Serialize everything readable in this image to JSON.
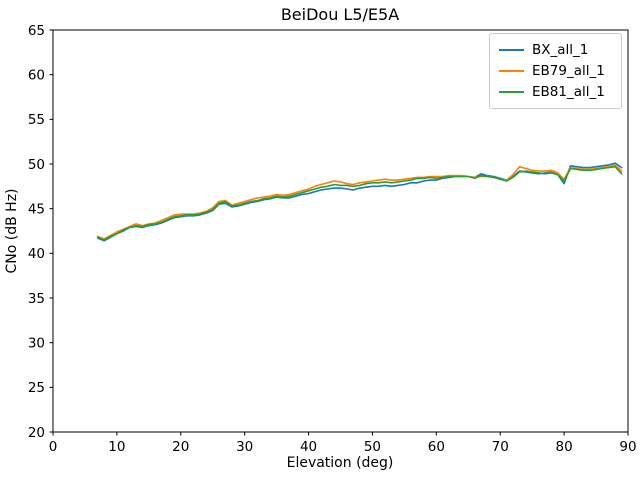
{
  "figure": {
    "title": "BeiDou L5/E5A",
    "xlabel": "Elevation (deg)",
    "ylabel": "CNo (dB Hz)"
  },
  "axes": {
    "xlim": [
      0,
      90
    ],
    "ylim": [
      20,
      65
    ],
    "x_ticks": [
      0,
      10,
      20,
      30,
      40,
      50,
      60,
      70,
      80,
      90
    ],
    "y_ticks": [
      20,
      25,
      30,
      35,
      40,
      45,
      50,
      55,
      60,
      65
    ],
    "spine_color": "#000000",
    "tick_color": "#000000"
  },
  "legend": {
    "border_color": "#cccccc",
    "items": [
      {
        "label": "BX_all_1",
        "color": "#1f77b4"
      },
      {
        "label": "EB79_all_1",
        "color": "#ff7f0e"
      },
      {
        "label": "EB81_all_1",
        "color": "#2ca02c"
      }
    ]
  },
  "chart_data": {
    "type": "line",
    "title": "BeiDou L5/E5A",
    "xlabel": "Elevation (deg)",
    "ylabel": "CNo (dB Hz)",
    "xlim": [
      0,
      90
    ],
    "ylim": [
      20,
      65
    ],
    "grid": false,
    "legend_position": "upper right",
    "line_width": 1.6,
    "x": [
      7,
      8,
      9,
      10,
      11,
      12,
      13,
      14,
      15,
      16,
      17,
      18,
      19,
      20,
      21,
      22,
      23,
      24,
      25,
      26,
      27,
      28,
      29,
      30,
      31,
      32,
      33,
      34,
      35,
      36,
      37,
      38,
      39,
      40,
      41,
      42,
      43,
      44,
      45,
      46,
      47,
      48,
      49,
      50,
      51,
      52,
      53,
      54,
      55,
      56,
      57,
      58,
      59,
      60,
      61,
      62,
      63,
      64,
      65,
      66,
      67,
      68,
      69,
      70,
      71,
      72,
      73,
      74,
      75,
      76,
      77,
      78,
      79,
      80,
      81,
      82,
      83,
      84,
      85,
      86,
      87,
      88,
      89
    ],
    "series": [
      {
        "name": "BX_all_1",
        "color": "#1f77b4",
        "values": [
          41.7,
          41.4,
          41.8,
          42.2,
          42.5,
          42.9,
          43.0,
          42.9,
          43.1,
          43.2,
          43.4,
          43.7,
          44.0,
          44.1,
          44.2,
          44.2,
          44.3,
          44.5,
          44.8,
          45.5,
          45.6,
          45.2,
          45.3,
          45.5,
          45.7,
          45.8,
          46.0,
          46.1,
          46.3,
          46.2,
          46.2,
          46.4,
          46.6,
          46.7,
          46.9,
          47.1,
          47.2,
          47.3,
          47.3,
          47.2,
          47.1,
          47.3,
          47.4,
          47.5,
          47.5,
          47.6,
          47.5,
          47.6,
          47.7,
          47.9,
          47.9,
          48.1,
          48.2,
          48.2,
          48.4,
          48.5,
          48.6,
          48.6,
          48.6,
          48.5,
          48.9,
          48.7,
          48.6,
          48.4,
          48.2,
          48.6,
          49.2,
          49.1,
          49.0,
          48.9,
          49.0,
          49.1,
          48.8,
          47.8,
          49.8,
          49.7,
          49.6,
          49.6,
          49.7,
          49.8,
          49.9,
          50.1,
          49.6
        ]
      },
      {
        "name": "EB79_all_1",
        "color": "#ff7f0e",
        "values": [
          41.9,
          41.6,
          42.0,
          42.4,
          42.7,
          43.0,
          43.3,
          43.1,
          43.3,
          43.4,
          43.7,
          44.0,
          44.3,
          44.4,
          44.4,
          44.4,
          44.5,
          44.7,
          45.1,
          45.8,
          45.9,
          45.4,
          45.6,
          45.8,
          46.0,
          46.2,
          46.3,
          46.4,
          46.6,
          46.5,
          46.6,
          46.8,
          47.0,
          47.2,
          47.5,
          47.7,
          47.9,
          48.1,
          48.0,
          47.8,
          47.7,
          47.9,
          48.0,
          48.1,
          48.2,
          48.3,
          48.2,
          48.2,
          48.3,
          48.4,
          48.5,
          48.5,
          48.6,
          48.6,
          48.6,
          48.7,
          48.7,
          48.7,
          48.6,
          48.5,
          48.6,
          48.6,
          48.5,
          48.3,
          48.2,
          48.8,
          49.7,
          49.5,
          49.3,
          49.2,
          49.2,
          49.3,
          49.0,
          48.3,
          49.6,
          49.5,
          49.4,
          49.4,
          49.5,
          49.6,
          49.7,
          49.9,
          49.2
        ]
      },
      {
        "name": "EB81_all_1",
        "color": "#2ca02c",
        "values": [
          41.8,
          41.5,
          41.9,
          42.2,
          42.6,
          42.9,
          43.1,
          43.0,
          43.2,
          43.3,
          43.5,
          43.8,
          44.1,
          44.2,
          44.3,
          44.3,
          44.4,
          44.6,
          44.9,
          45.6,
          45.8,
          45.3,
          45.4,
          45.6,
          45.8,
          45.9,
          46.1,
          46.2,
          46.4,
          46.3,
          46.4,
          46.6,
          46.8,
          47.0,
          47.2,
          47.4,
          47.5,
          47.7,
          47.6,
          47.6,
          47.5,
          47.6,
          47.8,
          47.9,
          47.9,
          48.0,
          47.9,
          48.0,
          48.1,
          48.2,
          48.4,
          48.4,
          48.5,
          48.4,
          48.5,
          48.6,
          48.6,
          48.6,
          48.6,
          48.4,
          48.7,
          48.6,
          48.5,
          48.3,
          48.1,
          48.5,
          49.1,
          49.2,
          49.1,
          49.0,
          48.9,
          49.0,
          48.8,
          48.1,
          49.5,
          49.4,
          49.3,
          49.3,
          49.4,
          49.5,
          49.6,
          49.7,
          48.9
        ]
      }
    ]
  }
}
